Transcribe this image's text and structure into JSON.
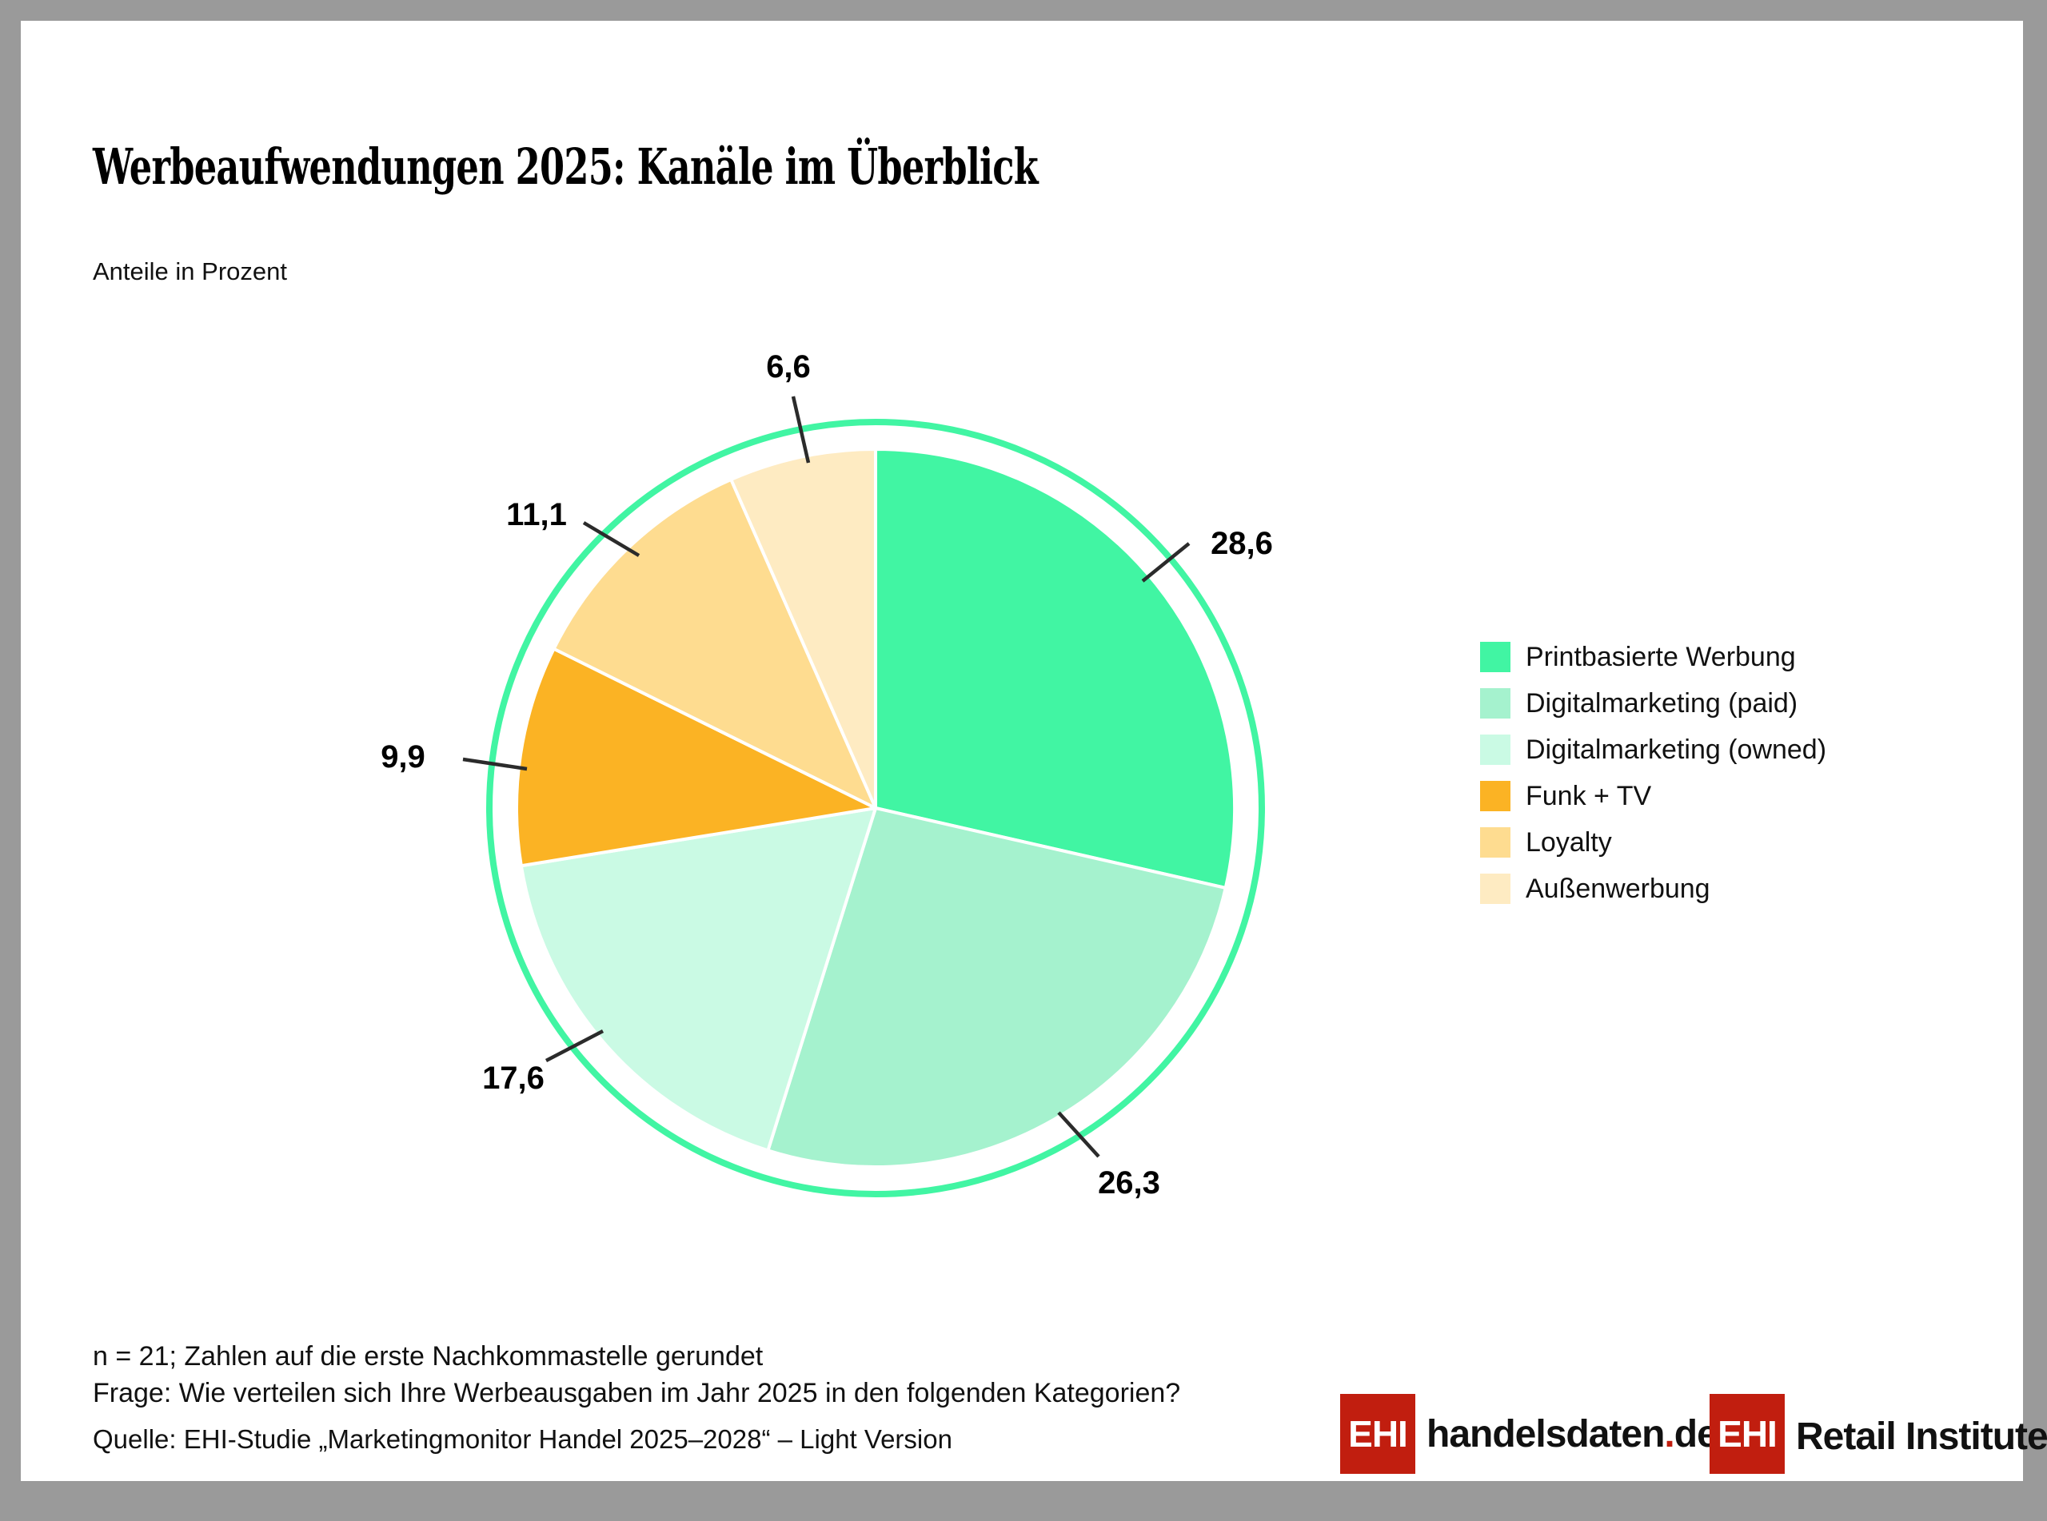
{
  "header": {
    "title": "Werbeaufwendungen 2025: Kanäle im Überblick",
    "subtitle": "Anteile in Prozent"
  },
  "chart_data": {
    "type": "pie",
    "title": "Werbeaufwendungen 2025: Kanäle im Überblick",
    "unit": "Prozent",
    "start_angle_deg_from_top": 0,
    "direction": "clockwise",
    "legend_position": "right",
    "outer_ring_color": "#41f5a3",
    "slices": [
      {
        "label": "Printbasierte Werbung",
        "value": 28.6,
        "display": "28,6",
        "color": "#41f5a3"
      },
      {
        "label": "Digitalmarketing (paid)",
        "value": 26.3,
        "display": "26,3",
        "color": "#a5f2ce"
      },
      {
        "label": "Digitalmarketing (owned)",
        "value": 17.6,
        "display": "17,6",
        "color": "#cafae4"
      },
      {
        "label": "Funk + TV",
        "value": 9.9,
        "display": "9,9",
        "color": "#fbb324"
      },
      {
        "label": "Loyalty",
        "value": 11.1,
        "display": "11,1",
        "color": "#fedc90"
      },
      {
        "label": "Außenwerbung",
        "value": 6.6,
        "display": "6,6",
        "color": "#feebc2"
      }
    ]
  },
  "notes": {
    "line1": "n = 21; Zahlen auf die erste Nachkommastelle gerundet",
    "line2": "Frage: Wie verteilen sich Ihre Werbeausgaben im Jahr 2025 in den folgenden Kategorien?"
  },
  "source": {
    "text": "Quelle: EHI-Studie „Marketingmonitor Handel 2025–2028“ – Light Version"
  },
  "logos": {
    "handelsdaten": {
      "ehi": "EHI",
      "text_black": "handelsdaten",
      "dot": ".",
      "suffix": "de"
    },
    "retail": {
      "ehi": "EHI",
      "text": "Retail Institute",
      "registered": "®"
    }
  },
  "colors": {
    "frame_gray": "#9a9a9a",
    "logo_red": "#c11e0f",
    "accent_green": "#41f5a3",
    "text_black": "#111111"
  }
}
